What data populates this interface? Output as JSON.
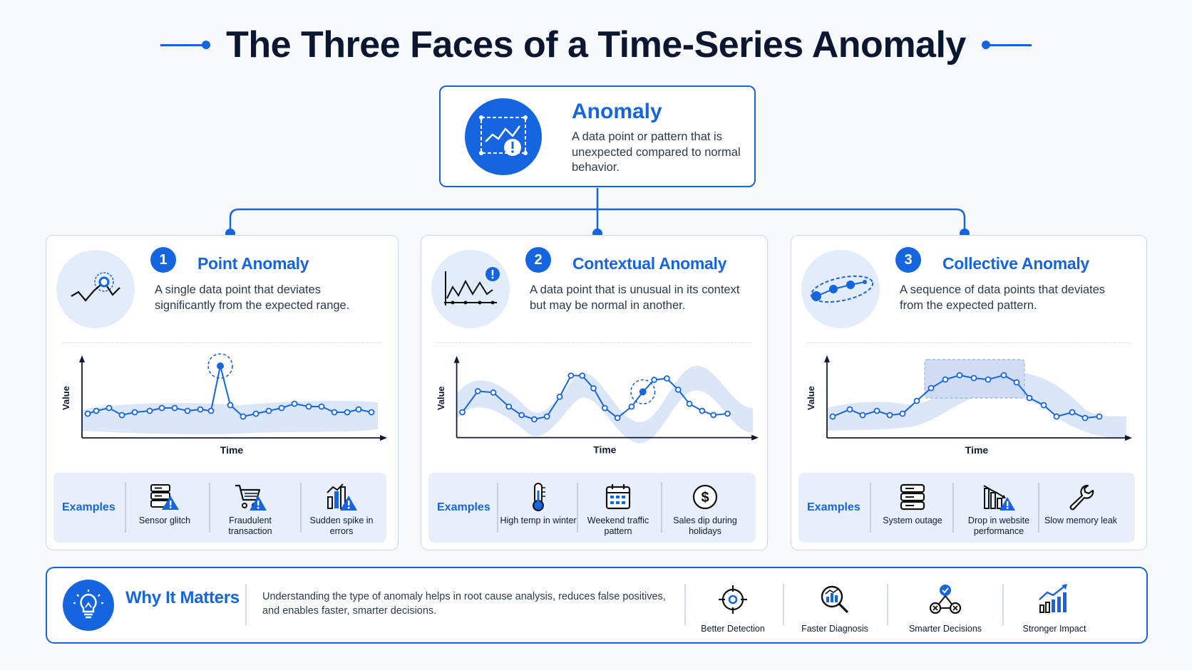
{
  "title": "The Three Faces of a Time-Series Anomaly",
  "root": {
    "title": "Anomaly",
    "description": "A data point or pattern that is unexpected compared to normal behavior."
  },
  "cards": [
    {
      "number": "1",
      "title": "Point Anomaly",
      "description": "A single data point that deviates significantly from the expected range.",
      "y_label": "Value",
      "x_label": "Time",
      "examples_label": "Examples",
      "examples": [
        "Sensor glitch",
        "Fraudulent transaction",
        "Sudden spike in errors"
      ]
    },
    {
      "number": "2",
      "title": "Contextual Anomaly",
      "description": "A data point that is unusual in its context but may be normal in another.",
      "y_label": "Value",
      "x_label": "Time",
      "examples_label": "Examples",
      "examples": [
        "High temp in winter",
        "Weekend traffic pattern",
        "Sales dip during holidays"
      ]
    },
    {
      "number": "3",
      "title": "Collective Anomaly",
      "description": "A sequence of data points that deviates from the expected pattern.",
      "y_label": "Value",
      "x_label": "Time",
      "examples_label": "Examples",
      "examples": [
        "System outage",
        "Drop in website performance",
        "Slow memory leak"
      ]
    }
  ],
  "why": {
    "title": "Why It Matters",
    "text": "Understanding the type of anomaly helps in root cause analysis, reduces false positives, and enables faster, smarter decisions.",
    "benefits": [
      "Better Detection",
      "Faster Diagnosis",
      "Smarter Decisions",
      "Stronger Impact"
    ]
  },
  "icons": {
    "root": "chart-alert-icon",
    "card1": "point-spike-icon",
    "card2": "contextual-alert-icon",
    "card3": "collective-group-icon",
    "why": "lightbulb-icon",
    "benefits": [
      "target-icon",
      "magnifier-chart-icon",
      "network-check-icon",
      "rising-bars-icon"
    ]
  },
  "colors": {
    "accent": "#1565e0",
    "band": "#dbe6f8",
    "panel": "#e8effb"
  }
}
